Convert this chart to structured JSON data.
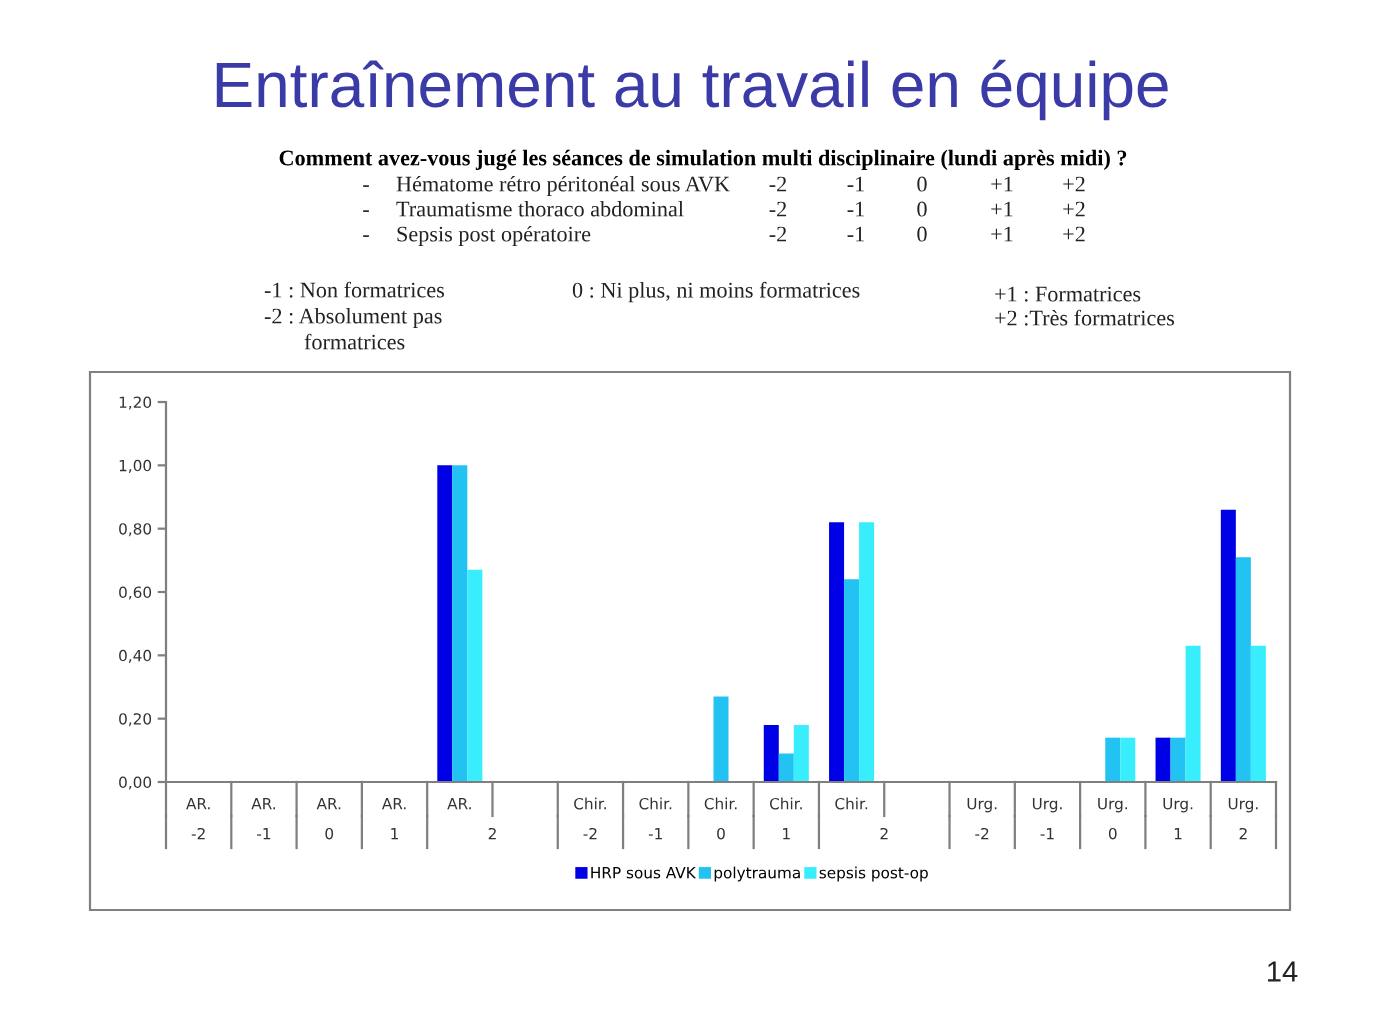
{
  "chart_data": {
    "type": "bar",
    "title": "Entraînement au travail en équipe",
    "subtitle": "Comment avez-vous jugé les séances de simulation multi disciplinaire (lundi après midi) ?",
    "annotations": [
      "-  Hématome rétro péritonéal sous AVK  -2  -1  0  +1  +2",
      "-  Traumatisme thoraco abdominal  -2  -1  0  +1  +2",
      "-  Sepsis post opératoire  -2  -1  0  +1  +2",
      "-1 : Non formatrices",
      "-2 : Absolument pas\nformatrices",
      "0 : Ni plus, ni moins formatrices",
      "+1 : Formatrices",
      "+2 :Très formatrices",
      "14"
    ],
    "categories": [
      "AR.\n-2",
      "AR.\n-1",
      "AR.\n0",
      "AR.\n1",
      "AR.\n2",
      null,
      "Chir.\n-2",
      "Chir.\n-1",
      "Chir.\n0",
      "Chir.\n1",
      "Chir.\n2",
      null,
      "Urg.\n-2",
      "Urg.\n-1",
      "Urg.\n0",
      "Urg.\n1",
      "Urg.\n2"
    ],
    "series": [
      {
        "name": "HRP sous AVK",
        "color": "#0000e6",
        "values": [
          null,
          null,
          null,
          null,
          1.0,
          null,
          null,
          null,
          null,
          0.18,
          0.82,
          null,
          null,
          null,
          null,
          0.14,
          0.86
        ]
      },
      {
        "name": "polytrauma",
        "color": "#22c3f3",
        "values": [
          null,
          null,
          null,
          null,
          1.0,
          null,
          null,
          null,
          0.27,
          0.09,
          0.64,
          null,
          null,
          null,
          0.14,
          0.14,
          0.71
        ]
      },
      {
        "name": "sepsis post-op",
        "color": "#38eefc",
        "values": [
          null,
          null,
          null,
          null,
          0.67,
          null,
          null,
          null,
          null,
          0.18,
          0.82,
          null,
          null,
          null,
          0.14,
          0.43,
          0.43
        ]
      }
    ],
    "ylim": [
      0,
      1.2
    ],
    "yticks": [
      {
        "value": 0,
        "label": "0,00"
      },
      {
        "value": 0.2,
        "label": "0,20"
      },
      {
        "value": 0.4,
        "label": "0,40"
      },
      {
        "value": 0.6,
        "label": "0,60"
      },
      {
        "value": 0.8,
        "label": "0,80"
      },
      {
        "value": 1.0,
        "label": "1,00"
      },
      {
        "value": 1.2,
        "label": "1,20"
      }
    ],
    "legend": "bottom"
  }
}
